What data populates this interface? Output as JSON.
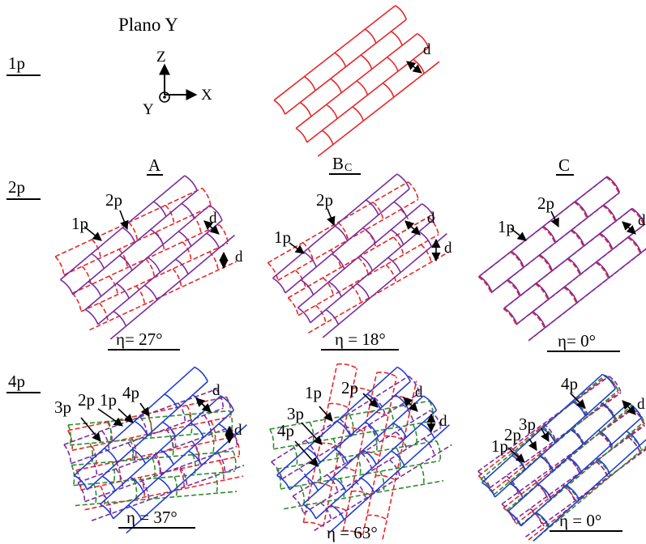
{
  "title": "Plano Y",
  "colors": {
    "1p": "#e8272a",
    "2p": "#7b2d9e",
    "3p": "#2e8b2e",
    "4p": "#1f3fd6"
  },
  "rows": [
    "1p",
    "2p",
    "4p"
  ],
  "columns": [
    {
      "label": "A",
      "sub": ""
    },
    {
      "label": "B",
      "sub": "C"
    },
    {
      "label": "C",
      "sub": ""
    }
  ],
  "axes": {
    "z": "Z",
    "x": "X",
    "y": "Y"
  },
  "dim_label": "d",
  "etas": {
    "2p": [
      "η= 27°",
      "η = 18°",
      "η= 0°"
    ],
    "4p": [
      "η = 37°",
      "η = 63°",
      "η = 0°"
    ]
  },
  "panel_labels": {
    "2p": [
      [
        "1p",
        "2p"
      ],
      [
        "1p",
        "2p"
      ],
      [
        "1p",
        "2p"
      ]
    ],
    "4p": [
      [
        "3p",
        "2p",
        "1p",
        "4p"
      ],
      [
        "1p",
        "2p",
        "3p",
        "4p"
      ],
      [
        "1p",
        "2p",
        "3p",
        "4p"
      ]
    ]
  }
}
